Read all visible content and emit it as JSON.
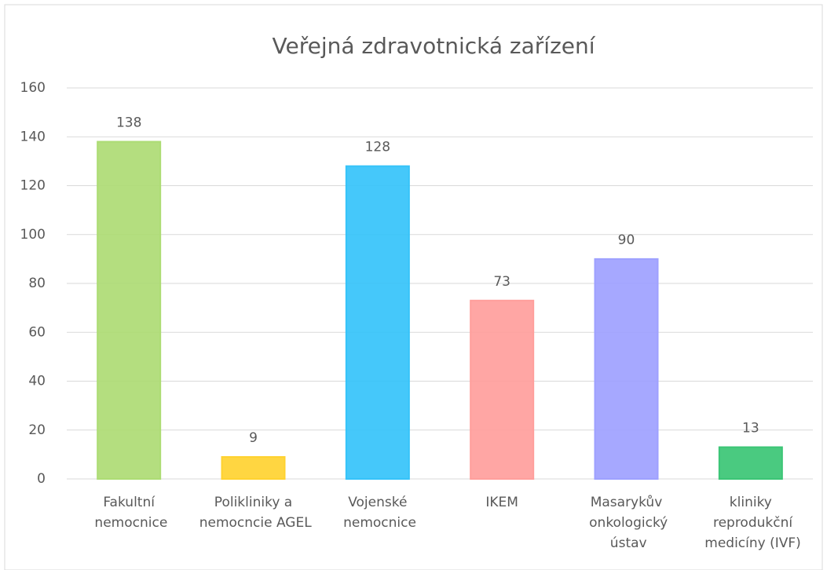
{
  "chart_data": {
    "type": "bar",
    "title": "Veřejná zdravotnická zařízení",
    "categories": [
      "Fakultní nemocnice",
      "Polikliniky a nemocncie AGEL",
      "Vojenské nemocnice",
      "IKEM",
      "Masarykův onkologický ústav",
      "kliniky reprodukční medicíny (IVF)"
    ],
    "values": [
      138,
      9,
      128,
      73,
      90,
      13
    ],
    "colors": [
      "#b0da7c",
      "#ffd23f",
      "#40c1f2",
      "#ffa19e",
      "#9fa2ff",
      "#44c27a"
    ],
    "ylim": [
      0,
      160
    ],
    "yticks": [
      0,
      20,
      40,
      60,
      80,
      100,
      120,
      140,
      160
    ],
    "grid": true
  }
}
